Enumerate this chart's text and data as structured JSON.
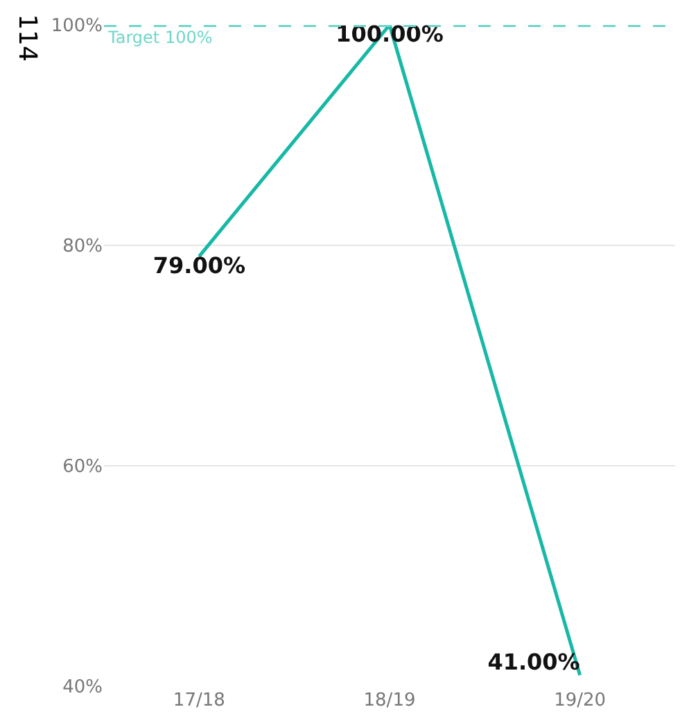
{
  "chart_data": {
    "type": "line",
    "categories": [
      "17/18",
      "18/19",
      "19/20"
    ],
    "series": [
      {
        "color": "#17b8a6",
        "values": [
          79,
          100,
          41
        ],
        "value_labels": [
          "79.00%",
          "100.00%",
          "41.00%"
        ]
      }
    ],
    "ylim": [
      40,
      100
    ],
    "yticks": [
      {
        "value": 40,
        "label": "40%"
      },
      {
        "value": 60,
        "label": "60%"
      },
      {
        "value": 80,
        "label": "80%"
      },
      {
        "value": 100,
        "label": "100%"
      }
    ],
    "grid": "y",
    "marker": "none",
    "line_style": "solid",
    "ref_lines": [
      {
        "axis": "y",
        "value": 100,
        "label": "Target 100%",
        "color": "#6fd6c8",
        "line_style": "dashed"
      }
    ],
    "annotations": [
      "114"
    ]
  }
}
